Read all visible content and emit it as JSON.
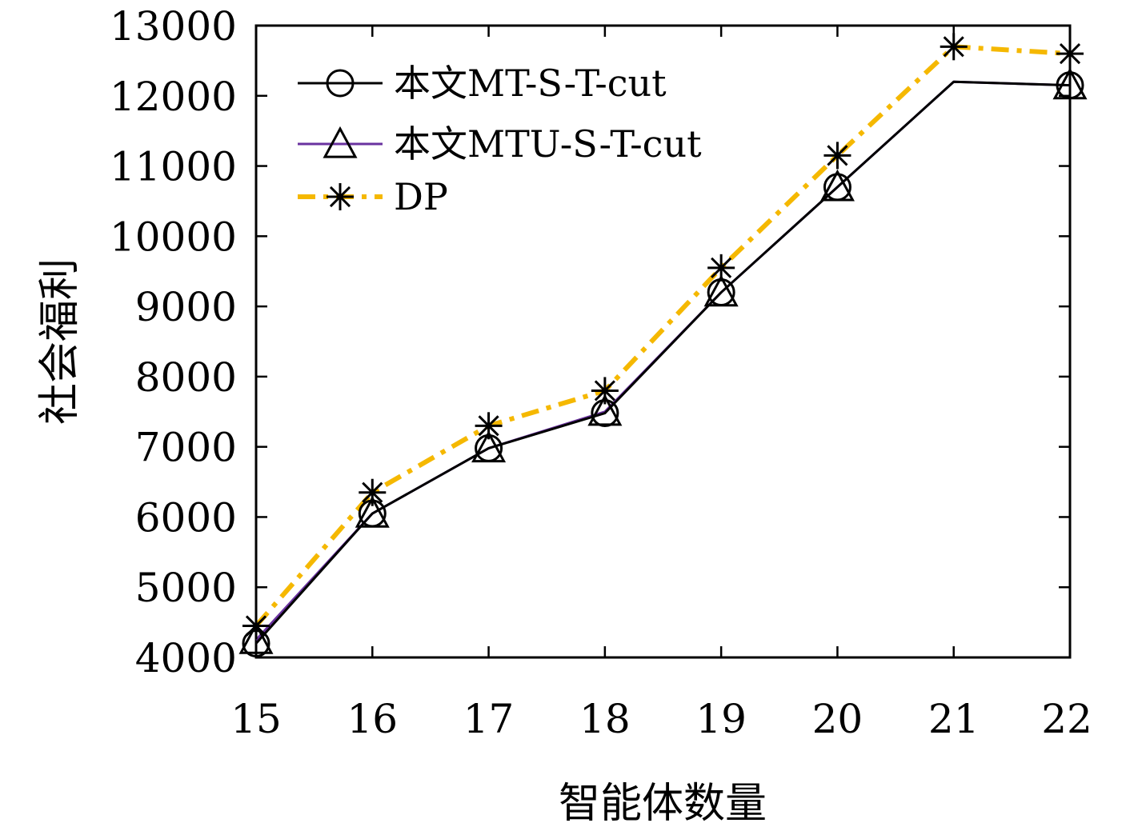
{
  "chart_data": {
    "type": "line",
    "title": "",
    "xlabel": "智能体数量",
    "ylabel": "社会福利",
    "categories": [
      15,
      16,
      17,
      18,
      19,
      20,
      21,
      22
    ],
    "xlim": [
      15,
      22
    ],
    "ylim": [
      4000,
      13000
    ],
    "yticks": [
      4000,
      5000,
      6000,
      7000,
      8000,
      9000,
      10000,
      11000,
      12000,
      13000
    ],
    "grid": false,
    "legend_position": "top-left",
    "series": [
      {
        "name": "本文MT-S-T-cut",
        "values": [
          4200,
          6050,
          6980,
          7480,
          9200,
          10700,
          12200,
          12150
        ],
        "color": "#000000",
        "marker": "circle",
        "line_style": "solid"
      },
      {
        "name": "本文MTU-S-T-cut",
        "values": [
          4250,
          6050,
          6980,
          7500,
          9200,
          10700,
          12200,
          12150
        ],
        "color": "#6a329f",
        "marker": "triangle",
        "line_style": "solid"
      },
      {
        "name": "DP",
        "values": [
          4450,
          6350,
          7300,
          7800,
          9550,
          11150,
          12700,
          12600
        ],
        "color": "#f5b800",
        "marker": "asterisk",
        "line_style": "dash-dot"
      }
    ]
  }
}
